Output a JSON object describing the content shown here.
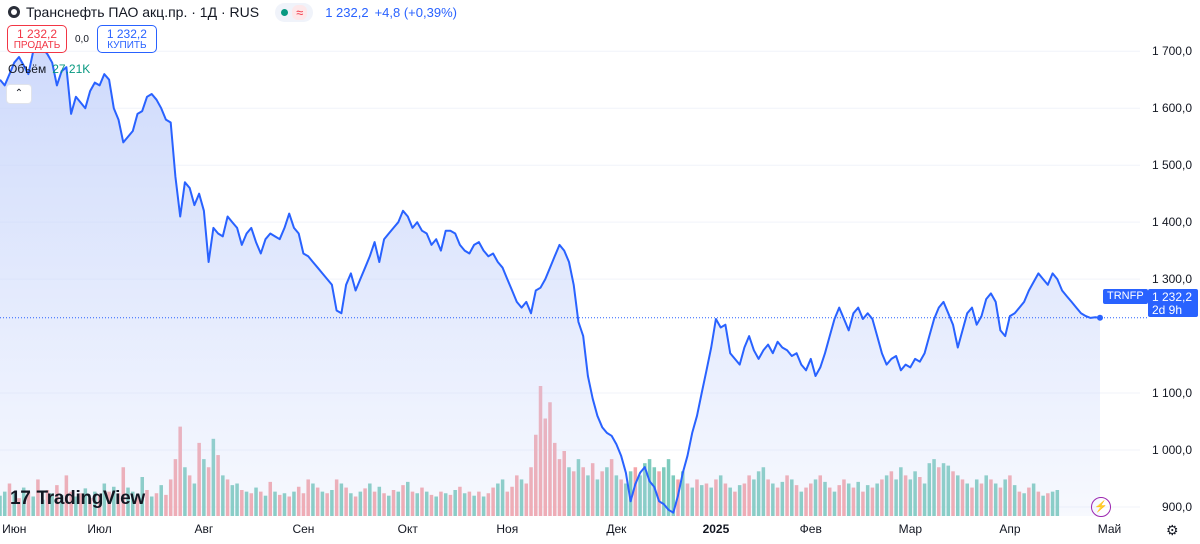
{
  "header": {
    "title": "Транснефть ПАО акц.пр. · 1Д · RUS",
    "wave": "≈",
    "price": "1 232,2",
    "change": "+4,8 (+0,39%)"
  },
  "trade": {
    "sell_value": "1 232,2",
    "sell_label": "ПРОДАТЬ",
    "spread": "0,0",
    "buy_value": "1 232,2",
    "buy_label": "КУПИТЬ"
  },
  "volume": {
    "label": "Объём",
    "value": "27,21K"
  },
  "collapse_glyph": "⌃",
  "logo_text": "TradingView",
  "logo_mark": "17",
  "price_tag": {
    "symbol": "TRNFP",
    "price": "1 232,2",
    "countdown": "2d 9h"
  },
  "colors": {
    "line": "#2962ff",
    "area_top": "#c9d6fb",
    "vol_up": "#7ecbbd",
    "vol_down": "#f5a5a9",
    "price_tag": "#2962ff"
  },
  "chart_data": {
    "type": "area",
    "title": "",
    "y_ticks": [
      {
        "label": "1 700,0",
        "value": 1700
      },
      {
        "label": "1 600,0",
        "value": 1600
      },
      {
        "label": "1 500,0",
        "value": 1500
      },
      {
        "label": "1 400,0",
        "value": 1400
      },
      {
        "label": "1 300,0",
        "value": 1300
      },
      {
        "label": "1 100,0",
        "value": 1100
      },
      {
        "label": "1 000,0",
        "value": 1000
      },
      {
        "label": "900,0",
        "value": 900
      }
    ],
    "ylim": [
      835,
      1790
    ],
    "x_labels": [
      "Июн",
      "Июл",
      "Авг",
      "Сен",
      "Окт",
      "Ноя",
      "Дек",
      "2025",
      "Фев",
      "Мар",
      "Апр",
      "Май"
    ],
    "x_label_index": [
      3,
      21,
      43,
      64,
      86,
      107,
      130,
      151,
      171,
      192,
      213,
      234
    ],
    "last_value": 1232.2,
    "series": [
      {
        "values": [
          1650,
          1640,
          1660,
          1680,
          1690,
          1675,
          1660,
          1700,
          1710,
          1705,
          1695,
          1680,
          1640,
          1665,
          1672,
          1590,
          1620,
          1610,
          1600,
          1630,
          1645,
          1640,
          1660,
          1650,
          1600,
          1580,
          1540,
          1550,
          1560,
          1590,
          1595,
          1620,
          1625,
          1615,
          1600,
          1580,
          1575,
          1480,
          1410,
          1470,
          1460,
          1430,
          1450,
          1420,
          1330,
          1390,
          1380,
          1375,
          1410,
          1400,
          1390,
          1360,
          1380,
          1390,
          1365,
          1345,
          1370,
          1380,
          1375,
          1370,
          1390,
          1415,
          1390,
          1380,
          1345,
          1340,
          1330,
          1320,
          1310,
          1300,
          1290,
          1245,
          1240,
          1290,
          1310,
          1280,
          1300,
          1320,
          1340,
          1365,
          1330,
          1370,
          1380,
          1390,
          1400,
          1420,
          1410,
          1390,
          1400,
          1385,
          1380,
          1360,
          1370,
          1350,
          1385,
          1385,
          1380,
          1360,
          1350,
          1345,
          1360,
          1365,
          1350,
          1340,
          1345,
          1330,
          1320,
          1300,
          1280,
          1260,
          1250,
          1260,
          1240,
          1280,
          1285,
          1300,
          1320,
          1340,
          1360,
          1350,
          1330,
          1290,
          1225,
          1200,
          1130,
          1090,
          1060,
          1040,
          1030,
          1025,
          1010,
          990,
          960,
          910,
          940,
          960,
          970,
          945,
          935,
          910,
          905,
          895,
          890,
          920,
          960,
          990,
          1030,
          1060,
          1100,
          1140,
          1180,
          1230,
          1215,
          1220,
          1170,
          1160,
          1150,
          1180,
          1200,
          1175,
          1160,
          1175,
          1185,
          1170,
          1190,
          1180,
          1175,
          1165,
          1170,
          1150,
          1140,
          1160,
          1130,
          1145,
          1170,
          1200,
          1230,
          1250,
          1230,
          1210,
          1240,
          1250,
          1230,
          1240,
          1230,
          1200,
          1170,
          1150,
          1160,
          1165,
          1140,
          1150,
          1145,
          1160,
          1155,
          1170,
          1200,
          1230,
          1250,
          1260,
          1240,
          1220,
          1180,
          1210,
          1240,
          1250,
          1220,
          1235,
          1265,
          1275,
          1260,
          1210,
          1200,
          1235,
          1240,
          1250,
          1260,
          1280,
          1295,
          1310,
          1300,
          1290,
          1310,
          1300,
          1280,
          1270,
          1260,
          1250,
          1240,
          1235,
          1232,
          1233,
          1232.2
        ]
      }
    ],
    "volume": [
      {
        "v": 25,
        "up": true
      },
      {
        "v": 30,
        "up": true
      },
      {
        "v": 40,
        "up": false
      },
      {
        "v": 28,
        "up": true
      },
      {
        "v": 22,
        "up": false
      },
      {
        "v": 35,
        "up": true
      },
      {
        "v": 30,
        "up": false
      },
      {
        "v": 24,
        "up": true
      },
      {
        "v": 45,
        "up": false
      },
      {
        "v": 20,
        "up": true
      },
      {
        "v": 32,
        "up": false
      },
      {
        "v": 28,
        "up": true
      },
      {
        "v": 38,
        "up": false
      },
      {
        "v": 26,
        "up": true
      },
      {
        "v": 50,
        "up": false
      },
      {
        "v": 30,
        "up": false
      },
      {
        "v": 24,
        "up": true
      },
      {
        "v": 28,
        "up": false
      },
      {
        "v": 34,
        "up": true
      },
      {
        "v": 22,
        "up": false
      },
      {
        "v": 30,
        "up": true
      },
      {
        "v": 26,
        "up": false
      },
      {
        "v": 40,
        "up": true
      },
      {
        "v": 30,
        "up": false
      },
      {
        "v": 36,
        "up": true
      },
      {
        "v": 28,
        "up": false
      },
      {
        "v": 60,
        "up": false
      },
      {
        "v": 35,
        "up": true
      },
      {
        "v": 30,
        "up": true
      },
      {
        "v": 26,
        "up": false
      },
      {
        "v": 48,
        "up": true
      },
      {
        "v": 32,
        "up": false
      },
      {
        "v": 24,
        "up": true
      },
      {
        "v": 28,
        "up": false
      },
      {
        "v": 38,
        "up": true
      },
      {
        "v": 26,
        "up": false
      },
      {
        "v": 45,
        "up": false
      },
      {
        "v": 70,
        "up": false
      },
      {
        "v": 110,
        "up": false
      },
      {
        "v": 60,
        "up": true
      },
      {
        "v": 50,
        "up": false
      },
      {
        "v": 40,
        "up": true
      },
      {
        "v": 90,
        "up": false
      },
      {
        "v": 70,
        "up": true
      },
      {
        "v": 60,
        "up": false
      },
      {
        "v": 95,
        "up": true
      },
      {
        "v": 75,
        "up": false
      },
      {
        "v": 50,
        "up": true
      },
      {
        "v": 45,
        "up": false
      },
      {
        "v": 38,
        "up": true
      },
      {
        "v": 40,
        "up": true
      },
      {
        "v": 32,
        "up": false
      },
      {
        "v": 30,
        "up": true
      },
      {
        "v": 28,
        "up": false
      },
      {
        "v": 35,
        "up": true
      },
      {
        "v": 30,
        "up": false
      },
      {
        "v": 25,
        "up": true
      },
      {
        "v": 42,
        "up": false
      },
      {
        "v": 30,
        "up": true
      },
      {
        "v": 26,
        "up": false
      },
      {
        "v": 28,
        "up": true
      },
      {
        "v": 24,
        "up": false
      },
      {
        "v": 30,
        "up": true
      },
      {
        "v": 36,
        "up": false
      },
      {
        "v": 28,
        "up": false
      },
      {
        "v": 45,
        "up": false
      },
      {
        "v": 40,
        "up": true
      },
      {
        "v": 35,
        "up": false
      },
      {
        "v": 30,
        "up": true
      },
      {
        "v": 28,
        "up": false
      },
      {
        "v": 32,
        "up": true
      },
      {
        "v": 45,
        "up": false
      },
      {
        "v": 40,
        "up": true
      },
      {
        "v": 35,
        "up": false
      },
      {
        "v": 28,
        "up": true
      },
      {
        "v": 24,
        "up": false
      },
      {
        "v": 30,
        "up": true
      },
      {
        "v": 34,
        "up": false
      },
      {
        "v": 40,
        "up": true
      },
      {
        "v": 30,
        "up": false
      },
      {
        "v": 36,
        "up": true
      },
      {
        "v": 28,
        "up": false
      },
      {
        "v": 25,
        "up": true
      },
      {
        "v": 32,
        "up": false
      },
      {
        "v": 30,
        "up": true
      },
      {
        "v": 38,
        "up": false
      },
      {
        "v": 42,
        "up": true
      },
      {
        "v": 30,
        "up": false
      },
      {
        "v": 28,
        "up": true
      },
      {
        "v": 35,
        "up": false
      },
      {
        "v": 30,
        "up": true
      },
      {
        "v": 26,
        "up": false
      },
      {
        "v": 24,
        "up": true
      },
      {
        "v": 30,
        "up": false
      },
      {
        "v": 28,
        "up": true
      },
      {
        "v": 26,
        "up": false
      },
      {
        "v": 32,
        "up": true
      },
      {
        "v": 36,
        "up": false
      },
      {
        "v": 28,
        "up": true
      },
      {
        "v": 30,
        "up": false
      },
      {
        "v": 25,
        "up": true
      },
      {
        "v": 30,
        "up": false
      },
      {
        "v": 24,
        "up": true
      },
      {
        "v": 28,
        "up": false
      },
      {
        "v": 35,
        "up": false
      },
      {
        "v": 40,
        "up": true
      },
      {
        "v": 45,
        "up": true
      },
      {
        "v": 30,
        "up": false
      },
      {
        "v": 36,
        "up": false
      },
      {
        "v": 50,
        "up": false
      },
      {
        "v": 45,
        "up": true
      },
      {
        "v": 40,
        "up": false
      },
      {
        "v": 60,
        "up": false
      },
      {
        "v": 100,
        "up": false
      },
      {
        "v": 160,
        "up": false
      },
      {
        "v": 120,
        "up": false
      },
      {
        "v": 140,
        "up": false
      },
      {
        "v": 90,
        "up": false
      },
      {
        "v": 70,
        "up": false
      },
      {
        "v": 80,
        "up": false
      },
      {
        "v": 60,
        "up": true
      },
      {
        "v": 55,
        "up": false
      },
      {
        "v": 70,
        "up": true
      },
      {
        "v": 60,
        "up": false
      },
      {
        "v": 50,
        "up": true
      },
      {
        "v": 65,
        "up": false
      },
      {
        "v": 45,
        "up": true
      },
      {
        "v": 55,
        "up": false
      },
      {
        "v": 60,
        "up": true
      },
      {
        "v": 70,
        "up": false
      },
      {
        "v": 50,
        "up": true
      },
      {
        "v": 45,
        "up": false
      },
      {
        "v": 40,
        "up": true
      },
      {
        "v": 55,
        "up": true
      },
      {
        "v": 60,
        "up": false
      },
      {
        "v": 50,
        "up": true
      },
      {
        "v": 65,
        "up": true
      },
      {
        "v": 70,
        "up": true
      },
      {
        "v": 60,
        "up": true
      },
      {
        "v": 55,
        "up": false
      },
      {
        "v": 60,
        "up": true
      },
      {
        "v": 70,
        "up": true
      },
      {
        "v": 50,
        "up": true
      },
      {
        "v": 45,
        "up": false
      },
      {
        "v": 55,
        "up": true
      },
      {
        "v": 40,
        "up": false
      },
      {
        "v": 35,
        "up": true
      },
      {
        "v": 45,
        "up": false
      },
      {
        "v": 38,
        "up": true
      },
      {
        "v": 40,
        "up": false
      },
      {
        "v": 35,
        "up": true
      },
      {
        "v": 45,
        "up": false
      },
      {
        "v": 50,
        "up": true
      },
      {
        "v": 40,
        "up": false
      },
      {
        "v": 35,
        "up": true
      },
      {
        "v": 30,
        "up": false
      },
      {
        "v": 38,
        "up": true
      },
      {
        "v": 40,
        "up": false
      },
      {
        "v": 50,
        "up": false
      },
      {
        "v": 45,
        "up": true
      },
      {
        "v": 55,
        "up": true
      },
      {
        "v": 60,
        "up": true
      },
      {
        "v": 45,
        "up": false
      },
      {
        "v": 40,
        "up": true
      },
      {
        "v": 35,
        "up": false
      },
      {
        "v": 42,
        "up": true
      },
      {
        "v": 50,
        "up": false
      },
      {
        "v": 45,
        "up": true
      },
      {
        "v": 38,
        "up": false
      },
      {
        "v": 30,
        "up": true
      },
      {
        "v": 35,
        "up": false
      },
      {
        "v": 40,
        "up": false
      },
      {
        "v": 45,
        "up": true
      },
      {
        "v": 50,
        "up": false
      },
      {
        "v": 42,
        "up": true
      },
      {
        "v": 35,
        "up": false
      },
      {
        "v": 30,
        "up": true
      },
      {
        "v": 38,
        "up": false
      },
      {
        "v": 45,
        "up": false
      },
      {
        "v": 40,
        "up": true
      },
      {
        "v": 35,
        "up": false
      },
      {
        "v": 42,
        "up": true
      },
      {
        "v": 30,
        "up": false
      },
      {
        "v": 38,
        "up": true
      },
      {
        "v": 35,
        "up": false
      },
      {
        "v": 40,
        "up": true
      },
      {
        "v": 45,
        "up": false
      },
      {
        "v": 50,
        "up": true
      },
      {
        "v": 55,
        "up": false
      },
      {
        "v": 45,
        "up": true
      },
      {
        "v": 60,
        "up": true
      },
      {
        "v": 50,
        "up": false
      },
      {
        "v": 45,
        "up": true
      },
      {
        "v": 55,
        "up": true
      },
      {
        "v": 48,
        "up": false
      },
      {
        "v": 40,
        "up": true
      },
      {
        "v": 65,
        "up": true
      },
      {
        "v": 70,
        "up": true
      },
      {
        "v": 60,
        "up": false
      },
      {
        "v": 65,
        "up": true
      },
      {
        "v": 62,
        "up": true
      },
      {
        "v": 55,
        "up": false
      },
      {
        "v": 50,
        "up": true
      },
      {
        "v": 45,
        "up": false
      },
      {
        "v": 40,
        "up": true
      },
      {
        "v": 35,
        "up": false
      },
      {
        "v": 45,
        "up": true
      },
      {
        "v": 40,
        "up": false
      },
      {
        "v": 50,
        "up": true
      },
      {
        "v": 45,
        "up": false
      },
      {
        "v": 40,
        "up": true
      },
      {
        "v": 35,
        "up": false
      },
      {
        "v": 45,
        "up": true
      },
      {
        "v": 50,
        "up": false
      },
      {
        "v": 38,
        "up": true
      },
      {
        "v": 30,
        "up": false
      },
      {
        "v": 28,
        "up": true
      },
      {
        "v": 35,
        "up": false
      },
      {
        "v": 40,
        "up": true
      },
      {
        "v": 30,
        "up": false
      },
      {
        "v": 25,
        "up": true
      },
      {
        "v": 28,
        "up": false
      },
      {
        "v": 30,
        "up": true
      },
      {
        "v": 32,
        "up": true
      }
    ]
  }
}
